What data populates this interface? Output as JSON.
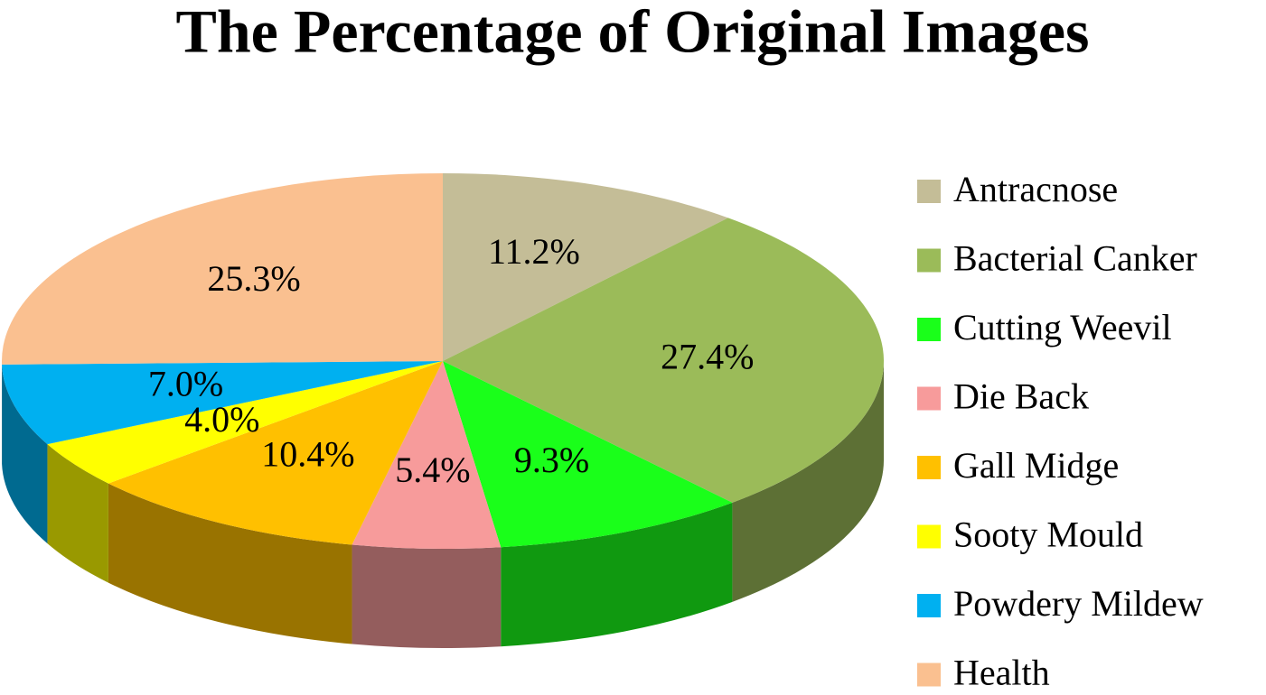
{
  "chart_data": {
    "type": "pie",
    "title": "The Percentage of Original Images",
    "categories": [
      "Antracnose",
      "Bacterial Canker",
      "Cutting Weevil",
      "Die Back",
      "Gall Midge",
      "Sooty Mould",
      "Powdery Mildew",
      "Health"
    ],
    "values": [
      11.2,
      27.4,
      9.3,
      5.4,
      10.4,
      4.0,
      7.0,
      25.3
    ],
    "value_labels": [
      "11.2%",
      "27.4%",
      "9.3%",
      "5.4%",
      "10.4%",
      "4.0%",
      "7.0%",
      "25.3%"
    ],
    "colors": [
      "#c4bd97",
      "#9bbb59",
      "#1aff1a",
      "#f79b9b",
      "#ffc000",
      "#ffff00",
      "#00b0f0",
      "#fac090"
    ]
  }
}
